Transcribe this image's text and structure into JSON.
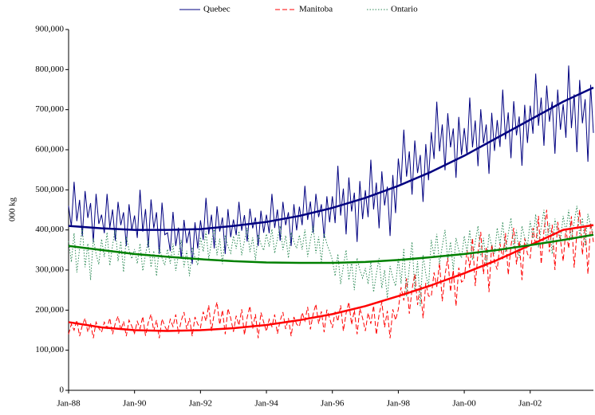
{
  "chart_data": {
    "type": "line",
    "y_label": "000 kg",
    "categories": [
      "Jan-88",
      "Feb-88",
      "Mar-88",
      "Apr-88",
      "May-88",
      "Jun-88",
      "Jul-88",
      "Aug-88",
      "Sep-88",
      "Oct-88",
      "Nov-88",
      "Dec-88",
      "Jan-89",
      "Feb-89",
      "Mar-89",
      "Apr-89",
      "May-89",
      "Jun-89",
      "Jul-89",
      "Aug-89",
      "Sep-89",
      "Oct-89",
      "Nov-89",
      "Dec-89",
      "Jan-90",
      "Feb-90",
      "Mar-90",
      "Apr-90",
      "May-90",
      "Jun-90",
      "Jul-90",
      "Aug-90",
      "Sep-90",
      "Oct-90",
      "Nov-90",
      "Dec-90",
      "Jan-91",
      "Feb-91",
      "Mar-91",
      "Apr-91",
      "May-91",
      "Jun-91",
      "Jul-91",
      "Aug-91",
      "Sep-91",
      "Oct-91",
      "Nov-91",
      "Dec-91",
      "Jan-92",
      "Feb-92",
      "Mar-92",
      "Apr-92",
      "May-92",
      "Jun-92",
      "Jul-92",
      "Aug-92",
      "Sep-92",
      "Oct-92",
      "Nov-92",
      "Dec-92",
      "Jan-93",
      "Feb-93",
      "Mar-93",
      "Apr-93",
      "May-93",
      "Jun-93",
      "Jul-93",
      "Aug-93",
      "Sep-93",
      "Oct-93",
      "Nov-93",
      "Dec-93",
      "Jan-94",
      "Feb-94",
      "Mar-94",
      "Apr-94",
      "May-94",
      "Jun-94",
      "Jul-94",
      "Aug-94",
      "Sep-94",
      "Oct-94",
      "Nov-94",
      "Dec-94",
      "Jan-95",
      "Feb-95",
      "Mar-95",
      "Apr-95",
      "May-95",
      "Jun-95",
      "Jul-95",
      "Aug-95",
      "Sep-95",
      "Oct-95",
      "Nov-95",
      "Dec-95",
      "Jan-96",
      "Feb-96",
      "Mar-96",
      "Apr-96",
      "May-96",
      "Jun-96",
      "Jul-96",
      "Aug-96",
      "Sep-96",
      "Oct-96",
      "Nov-96",
      "Dec-96",
      "Jan-97",
      "Feb-97",
      "Mar-97",
      "Apr-97",
      "May-97",
      "Jun-97",
      "Jul-97",
      "Aug-97",
      "Sep-97",
      "Oct-97",
      "Nov-97",
      "Dec-97",
      "Jan-98",
      "Feb-98",
      "Mar-98",
      "Apr-98",
      "May-98",
      "Jun-98",
      "Jul-98",
      "Aug-98",
      "Sep-98",
      "Oct-98",
      "Nov-98",
      "Dec-98",
      "Jan-99",
      "Feb-99",
      "Mar-99",
      "Apr-99",
      "May-99",
      "Jun-99",
      "Jul-99",
      "Aug-99",
      "Sep-99",
      "Oct-99",
      "Nov-99",
      "Dec-99",
      "Jan-00",
      "Feb-00",
      "Mar-00",
      "Apr-00",
      "May-00",
      "Jun-00",
      "Jul-00",
      "Aug-00",
      "Sep-00",
      "Oct-00",
      "Nov-00",
      "Dec-00",
      "Jan-01",
      "Feb-01",
      "Mar-01",
      "Apr-01",
      "May-01",
      "Jun-01",
      "Jul-01",
      "Aug-01",
      "Sep-01",
      "Oct-01",
      "Nov-01",
      "Dec-01",
      "Jan-02",
      "Feb-02",
      "Mar-02",
      "Apr-02",
      "May-02",
      "Jun-02",
      "Jul-02",
      "Aug-02",
      "Sep-02",
      "Oct-02",
      "Nov-02",
      "Dec-02",
      "Jan-03",
      "Feb-03",
      "Mar-03",
      "Apr-03",
      "May-03",
      "Jun-03",
      "Jul-03",
      "Aug-03",
      "Sep-03",
      "Oct-03",
      "Nov-03",
      "Dec-03"
    ],
    "xticks": [
      "Jan-88",
      "Jan-90",
      "Jan-92",
      "Jan-94",
      "Jan-96",
      "Jan-98",
      "Jan-00",
      "Jan-02"
    ],
    "ylim": [
      0,
      900000
    ],
    "yticks": [
      0,
      {
        "value": 100000,
        "label": "100,000"
      },
      {
        "value": 200000,
        "label": "200,000"
      },
      {
        "value": 300000,
        "label": "300,000"
      },
      {
        "value": 400000,
        "label": "400,000"
      },
      {
        "value": 500000,
        "label": "500,000"
      },
      {
        "value": 600000,
        "label": "600,000"
      },
      {
        "value": 700000,
        "label": "700,000"
      },
      {
        "value": 800000,
        "label": "800,000"
      },
      {
        "value": 900000,
        "label": "900,000"
      }
    ],
    "series": [
      {
        "name": "Quebec",
        "color": "#000080",
        "dash": "solid",
        "values": [
          460000,
          408000,
          520000,
          422000,
          475000,
          385000,
          497000,
          430000,
          467000,
          370000,
          490000,
          415000,
          438000,
          392000,
          490000,
          405000,
          451000,
          373000,
          470000,
          412000,
          444000,
          360000,
          464000,
          399000,
          436000,
          380000,
          500000,
          396000,
          452000,
          356000,
          476000,
          404000,
          444000,
          340000,
          468000,
          388000,
          393000,
          347000,
          445000,
          360000,
          406000,
          328000,
          425000,
          367000,
          399000,
          315000,
          419000,
          354000,
          424000,
          375000,
          480000,
          389000,
          438000,
          354000,
          459000,
          396000,
          431000,
          340000,
          452000,
          382000,
          426000,
          387000,
          470000,
          398000,
          437000,
          371000,
          453000,
          404000,
          431000,
          360000,
          448000,
          393000,
          438000,
          392000,
          490000,
          405000,
          451000,
          373000,
          470000,
          412000,
          444000,
          360000,
          464000,
          399000,
          458000,
          412000,
          510000,
          425000,
          471000,
          393000,
          490000,
          432000,
          464000,
          380000,
          484000,
          419000,
          484000,
          417000,
          560000,
          436000,
          503000,
          389000,
          531000,
          446000,
          493000,
          370000,
          522000,
          427000,
          499000,
          432000,
          575000,
          451000,
          518000,
          404000,
          546000,
          461000,
          508000,
          385000,
          537000,
          442000,
          578000,
          515000,
          650000,
          533000,
          596000,
          488000,
          623000,
          542000,
          587000,
          470000,
          614000,
          524000,
          644000,
          577000,
          720000,
          596000,
          663000,
          549000,
          691000,
          606000,
          653000,
          530000,
          682000,
          587000,
          654000,
          587000,
          730000,
          606000,
          673000,
          559000,
          701000,
          616000,
          663000,
          540000,
          692000,
          597000,
          674000,
          607000,
          750000,
          626000,
          693000,
          579000,
          721000,
          636000,
          683000,
          560000,
          712000,
          617000,
          710000,
          640000,
          790000,
          660000,
          730000,
          610000,
          760000,
          670000,
          720000,
          590000,
          750000,
          650000,
          714000,
          630000,
          810000,
          654000,
          738000,
          594000,
          774000,
          666000,
          726000,
          570000,
          762000,
          642000
        ]
      },
      {
        "name": "Manitoba",
        "color": "#ff0000",
        "dash": "dashed",
        "values": [
          140000,
          165000,
          150000,
          175000,
          135000,
          162000,
          180000,
          145000,
          167000,
          130000,
          170000,
          155000,
          145000,
          170000,
          155000,
          180000,
          140000,
          167000,
          185000,
          150000,
          172000,
          135000,
          175000,
          160000,
          142000,
          172000,
          154000,
          184000,
          136000,
          169000,
          190000,
          148000,
          175000,
          130000,
          178000,
          160000,
          147000,
          177000,
          159000,
          189000,
          141000,
          174000,
          195000,
          153000,
          180000,
          135000,
          183000,
          165000,
          156000,
          196000,
          172000,
          212000,
          148000,
          192000,
          220000,
          164000,
          200000,
          140000,
          204000,
          180000,
          146000,
          186000,
          162000,
          202000,
          138000,
          182000,
          210000,
          154000,
          190000,
          130000,
          194000,
          170000,
          147000,
          177000,
          159000,
          189000,
          141000,
          174000,
          195000,
          153000,
          180000,
          135000,
          183000,
          165000,
          159000,
          194000,
          173000,
          208000,
          152000,
          190000,
          215000,
          166000,
          197000,
          145000,
          201000,
          180000,
          156000,
          196000,
          172000,
          212000,
          148000,
          192000,
          220000,
          164000,
          200000,
          140000,
          204000,
          180000,
          148000,
          193000,
          166000,
          211000,
          139000,
          189000,
          220000,
          157000,
          198000,
          130000,
          202000,
          175000,
          202000,
          257000,
          224000,
          279000,
          191000,
          252000,
          290000,
          213000,
          262000,
          180000,
          268000,
          235000,
          234000,
          294000,
          258000,
          318000,
          222000,
          288000,
          330000,
          246000,
          300000,
          210000,
          306000,
          270000,
          275000,
          350000,
          305000,
          380000,
          260000,
          343000,
          395000,
          290000,
          358000,
          245000,
          365000,
          320000,
          301000,
          366000,
          327000,
          392000,
          288000,
          360000,
          405000,
          314000,
          373000,
          275000,
          379000,
          340000,
          330000,
          405000,
          360000,
          435000,
          315000,
          398000,
          450000,
          345000,
          413000,
          300000,
          420000,
          375000,
          322000,
          402000,
          354000,
          434000,
          306000,
          394000,
          450000,
          338000,
          410000,
          290000,
          418000,
          370000
        ]
      },
      {
        "name": "Ontario",
        "color": "#2e8b57",
        "dash": "dotted",
        "values": [
          372000,
          320000,
          392000,
          294000,
          353000,
          405000,
          307000,
          366000,
          275000,
          379000,
          340000,
          314000,
          377000,
          333000,
          394000,
          311000,
          361000,
          405000,
          322000,
          372000,
          295000,
          383000,
          350000,
          328000,
          352000,
          316000,
          366000,
          298000,
          339000,
          375000,
          307000,
          348000,
          285000,
          357000,
          330000,
          312000,
          352000,
          316000,
          366000,
          298000,
          339000,
          375000,
          307000,
          348000,
          285000,
          357000,
          330000,
          312000,
          382000,
          346000,
          396000,
          328000,
          369000,
          405000,
          337000,
          378000,
          315000,
          387000,
          360000,
          342000,
          385000,
          353000,
          397000,
          337000,
          373000,
          405000,
          345000,
          381000,
          325000,
          389000,
          365000,
          349000,
          390000,
          358000,
          402000,
          342000,
          378000,
          410000,
          350000,
          386000,
          330000,
          394000,
          370000,
          354000,
          387000,
          351000,
          401000,
          333000,
          374000,
          410000,
          342000,
          383000,
          320000,
          392000,
          365000,
          347000,
          325000,
          285000,
          340000,
          265000,
          310000,
          350000,
          275000,
          320000,
          250000,
          330000,
          300000,
          280000,
          305000,
          265000,
          320000,
          245000,
          290000,
          330000,
          255000,
          300000,
          230000,
          310000,
          280000,
          260000,
          330000,
          266000,
          354000,
          234000,
          306000,
          370000,
          250000,
          322000,
          210000,
          338000,
          290000,
          258000,
          375000,
          335000,
          390000,
          315000,
          360000,
          400000,
          325000,
          370000,
          300000,
          380000,
          350000,
          330000,
          385000,
          345000,
          400000,
          325000,
          370000,
          410000,
          335000,
          380000,
          310000,
          390000,
          360000,
          340000,
          405000,
          365000,
          420000,
          345000,
          390000,
          430000,
          355000,
          400000,
          330000,
          410000,
          380000,
          360000,
          422000,
          378000,
          439000,
          356000,
          406000,
          450000,
          367000,
          417000,
          340000,
          428000,
          395000,
          373000,
          435000,
          395000,
          450000,
          375000,
          420000,
          460000,
          385000,
          430000,
          360000,
          440000,
          410000,
          390000
        ]
      }
    ],
    "trends": [
      {
        "color": "#000080",
        "x": [
          "Jan-88",
          "Jan-89",
          "Jan-90",
          "Jan-91",
          "Jan-92",
          "Jan-93",
          "Jan-94",
          "Jan-95",
          "Jan-96",
          "Jan-97",
          "Jan-98",
          "Jan-99",
          "Jan-00",
          "Jan-01",
          "Jan-02",
          "Jan-03",
          "Dec-03"
        ],
        "values": [
          410000,
          404000,
          400000,
          400000,
          402000,
          410000,
          420000,
          435000,
          455000,
          480000,
          510000,
          545000,
          585000,
          630000,
          675000,
          720000,
          755000
        ]
      },
      {
        "color": "#ff0000",
        "x": [
          "Jan-88",
          "Jan-89",
          "Jan-90",
          "Jan-91",
          "Jan-92",
          "Jan-93",
          "Jan-94",
          "Jan-95",
          "Jan-96",
          "Jan-97",
          "Jan-98",
          "Jan-99",
          "Jan-00",
          "Jan-01",
          "Jan-02",
          "Jan-03",
          "Dec-03"
        ],
        "values": [
          170000,
          157000,
          150000,
          148000,
          150000,
          155000,
          163000,
          175000,
          190000,
          210000,
          235000,
          262000,
          292000,
          325000,
          362000,
          400000,
          412000
        ]
      },
      {
        "color": "#008000",
        "x": [
          "Jan-88",
          "Jan-89",
          "Jan-90",
          "Jan-91",
          "Jan-92",
          "Jan-93",
          "Jan-94",
          "Jan-95",
          "Jan-96",
          "Jan-97",
          "Jan-98",
          "Jan-99",
          "Jan-00",
          "Jan-01",
          "Jan-02",
          "Jan-03",
          "Dec-03"
        ],
        "values": [
          360000,
          350000,
          340000,
          333000,
          327000,
          322000,
          319000,
          318000,
          318000,
          320000,
          325000,
          332000,
          340000,
          350000,
          362000,
          375000,
          388000
        ]
      }
    ]
  }
}
